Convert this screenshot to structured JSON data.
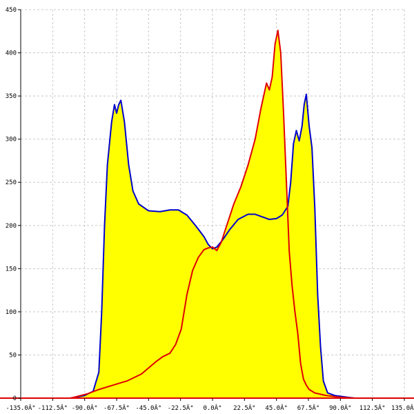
{
  "chart_data": {
    "type": "area",
    "title": "",
    "xlabel": "",
    "ylabel": "",
    "xlim": [
      -135,
      135
    ],
    "ylim": [
      0,
      450
    ],
    "x_ticks": [
      -135,
      -112.5,
      -90,
      -67.5,
      -45,
      -22.5,
      0,
      22.5,
      45,
      67.5,
      90,
      112.5,
      135
    ],
    "x_tick_labels": [
      "-135.0Â°",
      "-112.5Â°",
      "-90.0Â°",
      "-67.5Â°",
      "-45.0Â°",
      "-22.5Â°",
      "0.0Â°",
      "22.5Â°",
      "45.0Â°",
      "67.5Â°",
      "90.0Â°",
      "112.5Â°",
      "135.0Â°"
    ],
    "y_ticks": [
      0,
      50,
      100,
      150,
      200,
      250,
      300,
      350,
      400,
      450
    ],
    "y_tick_labels": [
      "0",
      "50",
      "100",
      "150",
      "200",
      "250",
      "300",
      "350",
      "400",
      "450"
    ],
    "grid": true,
    "fill_color": "#ffff00",
    "series": [
      {
        "color": "#0000cc",
        "points": [
          [
            -100,
            0
          ],
          [
            -90,
            3
          ],
          [
            -84,
            8
          ],
          [
            -80,
            30
          ],
          [
            -78,
            100
          ],
          [
            -76,
            200
          ],
          [
            -74,
            270
          ],
          [
            -71,
            320
          ],
          [
            -69,
            340
          ],
          [
            -67.5,
            330
          ],
          [
            -66,
            340
          ],
          [
            -64.5,
            345
          ],
          [
            -62,
            320
          ],
          [
            -59,
            270
          ],
          [
            -56,
            240
          ],
          [
            -52,
            225
          ],
          [
            -45,
            217
          ],
          [
            -37,
            216
          ],
          [
            -30,
            218
          ],
          [
            -24,
            218
          ],
          [
            -18,
            212
          ],
          [
            -12,
            200
          ],
          [
            -6,
            187
          ],
          [
            -3,
            178
          ],
          [
            0,
            173
          ],
          [
            3,
            175
          ],
          [
            7,
            183
          ],
          [
            12,
            195
          ],
          [
            18,
            207
          ],
          [
            25,
            213
          ],
          [
            30,
            213
          ],
          [
            35,
            210
          ],
          [
            40,
            207
          ],
          [
            45,
            208
          ],
          [
            49,
            212
          ],
          [
            53,
            222
          ],
          [
            55,
            250
          ],
          [
            57,
            295
          ],
          [
            59,
            310
          ],
          [
            61,
            298
          ],
          [
            63,
            315
          ],
          [
            64.5,
            340
          ],
          [
            66,
            352
          ],
          [
            68,
            315
          ],
          [
            70,
            290
          ],
          [
            72,
            220
          ],
          [
            74,
            120
          ],
          [
            76,
            60
          ],
          [
            78,
            20
          ],
          [
            81,
            6
          ],
          [
            86,
            3
          ],
          [
            95,
            1
          ],
          [
            100,
            0
          ]
        ]
      },
      {
        "color": "#e00000",
        "points": [
          [
            -100,
            0
          ],
          [
            -95,
            2
          ],
          [
            -88,
            5
          ],
          [
            -80,
            10
          ],
          [
            -70,
            15
          ],
          [
            -60,
            20
          ],
          [
            -50,
            28
          ],
          [
            -45,
            35
          ],
          [
            -40,
            42
          ],
          [
            -35,
            48
          ],
          [
            -30,
            52
          ],
          [
            -26,
            62
          ],
          [
            -22,
            80
          ],
          [
            -18,
            120
          ],
          [
            -14,
            148
          ],
          [
            -10,
            163
          ],
          [
            -6,
            172
          ],
          [
            -3,
            174
          ],
          [
            0,
            175
          ],
          [
            3,
            171
          ],
          [
            6,
            180
          ],
          [
            10,
            200
          ],
          [
            15,
            225
          ],
          [
            20,
            245
          ],
          [
            25,
            270
          ],
          [
            30,
            300
          ],
          [
            34,
            335
          ],
          [
            38,
            365
          ],
          [
            40,
            357
          ],
          [
            42,
            372
          ],
          [
            44,
            410
          ],
          [
            46,
            426
          ],
          [
            48,
            400
          ],
          [
            50,
            330
          ],
          [
            52,
            250
          ],
          [
            54,
            170
          ],
          [
            56,
            130
          ],
          [
            58,
            100
          ],
          [
            60,
            75
          ],
          [
            62,
            40
          ],
          [
            64,
            22
          ],
          [
            66,
            15
          ],
          [
            68,
            10
          ],
          [
            72,
            6
          ],
          [
            80,
            3
          ],
          [
            90,
            1
          ],
          [
            100,
            0
          ]
        ]
      }
    ]
  }
}
